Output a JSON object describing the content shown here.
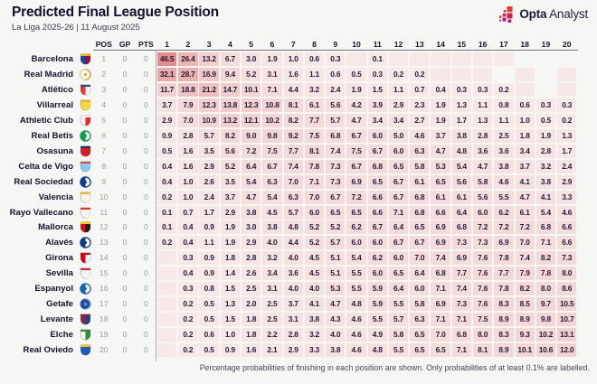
{
  "header": {
    "title": "Predicted Final League Position",
    "subtitle": "La Liga 2025-26 | 11 August 2025"
  },
  "logo": {
    "brand_bold": "Opta",
    "brand_light": "Analyst"
  },
  "table_columns": {
    "pos": "POS",
    "gp": "GP",
    "pts": "PTS"
  },
  "footer": {
    "note": "Percentage probabilities of finishing in each position are shown. Only probabilities of at least 0.1% are labelled."
  },
  "colors": {
    "background": "#f6f6f4",
    "text_dark": "#14132f",
    "text_gray": "#9b9ba2",
    "cell_text": "#2a2344",
    "cell_low": "#f8e9e9",
    "cell_high": "#e58b8b",
    "logo_red": "#e73c2e",
    "logo_crimson": "#c4244f",
    "logo_magenta": "#a21a68",
    "logo_purple": "#8c2f92"
  },
  "chart_data": {
    "type": "heatmap",
    "title": "Predicted Final League Position",
    "subtitle": "La Liga 2025-26 | 11 August 2025",
    "x_labels": [
      "1",
      "2",
      "3",
      "4",
      "5",
      "6",
      "7",
      "8",
      "9",
      "10",
      "11",
      "12",
      "13",
      "14",
      "15",
      "16",
      "17",
      "18",
      "19",
      "20"
    ],
    "note": "Percentage probabilities of finishing in each position are shown. Only probabilities of at least 0.1% are labelled.",
    "value_scale": {
      "min": 0,
      "max": 46.5
    },
    "teams": [
      {
        "name": "Barcelona",
        "pos": 1,
        "gp": 0,
        "pts": 0,
        "badge": {
          "shape": "shield",
          "c1": "#004d98",
          "c2": "#a50044",
          "c3": "#edbb00"
        },
        "probs": [
          46.5,
          26.4,
          13.2,
          6.7,
          3.0,
          1.9,
          1.0,
          0.6,
          0.3,
          0,
          0.1,
          0,
          0,
          0,
          0,
          0,
          0,
          null,
          null,
          null
        ]
      },
      {
        "name": "Real Madrid",
        "pos": 2,
        "gp": 0,
        "pts": 0,
        "badge": {
          "shape": "circle",
          "c1": "#f7f5ec",
          "c2": "#f7f5ec",
          "c3": "#c9a227"
        },
        "probs": [
          32.1,
          28.7,
          16.9,
          9.4,
          5.2,
          3.1,
          1.6,
          1.1,
          0.6,
          0.5,
          0.3,
          0.2,
          0.2,
          0,
          0,
          0,
          null,
          0,
          null,
          0
        ]
      },
      {
        "name": "Atlético",
        "pos": 3,
        "gp": 0,
        "pts": 0,
        "badge": {
          "shape": "shield",
          "c1": "#e23b30",
          "c2": "#f4f4f4",
          "c3": "#27498c"
        },
        "probs": [
          11.7,
          18.8,
          21.2,
          14.7,
          10.1,
          7.1,
          4.4,
          3.2,
          2.4,
          1.9,
          1.5,
          1.1,
          0.7,
          0.4,
          0.3,
          0.3,
          0.2,
          0,
          null,
          0
        ]
      },
      {
        "name": "Villarreal",
        "pos": 4,
        "gp": 0,
        "pts": 0,
        "badge": {
          "shape": "shield",
          "c1": "#f2d93c",
          "c2": "#f2d93c",
          "c3": "#e8b321"
        },
        "probs": [
          3.7,
          7.9,
          12.3,
          13.8,
          12.3,
          10.8,
          8.1,
          6.1,
          5.6,
          4.2,
          3.9,
          2.9,
          2.3,
          1.9,
          1.3,
          1.1,
          0.8,
          0.6,
          0.3,
          0.3
        ]
      },
      {
        "name": "Athletic Club",
        "pos": 5,
        "gp": 0,
        "pts": 0,
        "badge": {
          "shape": "shield",
          "c1": "#f4f4f4",
          "c2": "#ee2523",
          "c3": "#f4f4f4"
        },
        "probs": [
          2.9,
          7.0,
          10.9,
          13.2,
          12.1,
          10.2,
          8.2,
          7.7,
          5.7,
          4.7,
          3.4,
          3.4,
          2.7,
          1.9,
          1.7,
          1.3,
          1.1,
          1.0,
          0.5,
          0.2
        ]
      },
      {
        "name": "Real Betis",
        "pos": 6,
        "gp": 0,
        "pts": 0,
        "badge": {
          "shape": "circle",
          "c1": "#0b9e4e",
          "c2": "#f6f6f4",
          "c3": "#0b9e4e"
        },
        "probs": [
          0.9,
          2.8,
          5.7,
          8.2,
          9.0,
          9.8,
          9.2,
          7.5,
          6.8,
          6.7,
          6.0,
          5.0,
          4.6,
          3.7,
          3.8,
          2.8,
          2.5,
          1.8,
          1.9,
          1.3
        ]
      },
      {
        "name": "Osasuna",
        "pos": 7,
        "gp": 0,
        "pts": 0,
        "badge": {
          "shape": "shield",
          "c1": "#d91a21",
          "c2": "#d91a21",
          "c3": "#0a346f"
        },
        "probs": [
          0.5,
          1.6,
          3.5,
          5.6,
          7.2,
          7.5,
          7.7,
          8.1,
          7.4,
          7.5,
          6.7,
          6.0,
          6.3,
          4.7,
          4.8,
          3.6,
          3.6,
          3.4,
          2.8,
          1.7
        ]
      },
      {
        "name": "Celta de Vigo",
        "pos": 8,
        "gp": 0,
        "pts": 0,
        "badge": {
          "shape": "shield",
          "c1": "#8ec9f2",
          "c2": "#8ec9f2",
          "c3": "#d94a3a"
        },
        "probs": [
          0.4,
          1.6,
          2.9,
          5.2,
          6.4,
          6.7,
          7.4,
          7.8,
          7.3,
          6.7,
          6.8,
          6.5,
          5.8,
          5.3,
          5.4,
          4.7,
          3.8,
          3.7,
          3.2,
          2.4
        ]
      },
      {
        "name": "Real Sociedad",
        "pos": 9,
        "gp": 0,
        "pts": 0,
        "badge": {
          "shape": "circle",
          "c1": "#0b3d91",
          "c2": "#f4f4f4",
          "c3": "#0b3d91"
        },
        "probs": [
          0.4,
          1.0,
          2.6,
          3.5,
          5.4,
          6.3,
          7.0,
          7.1,
          7.3,
          6.9,
          6.5,
          6.7,
          6.1,
          6.5,
          5.6,
          5.8,
          4.6,
          4.1,
          3.8,
          2.9
        ]
      },
      {
        "name": "Valencia",
        "pos": 10,
        "gp": 0,
        "pts": 0,
        "badge": {
          "shape": "shield",
          "c1": "#f6f4ee",
          "c2": "#f6f4ee",
          "c3": "#f0b529"
        },
        "probs": [
          0.2,
          1.0,
          2.4,
          3.7,
          4.7,
          5.4,
          6.3,
          7.0,
          6.7,
          7.2,
          6.6,
          6.7,
          6.8,
          6.1,
          6.1,
          5.6,
          5.5,
          4.7,
          4.1,
          3.3
        ]
      },
      {
        "name": "Rayo Vallecano",
        "pos": 11,
        "gp": 0,
        "pts": 0,
        "badge": {
          "shape": "shield",
          "c1": "#f6f4ee",
          "c2": "#f6f4ee",
          "c3": "#e53027"
        },
        "probs": [
          0.1,
          0.7,
          1.7,
          2.9,
          3.8,
          4.5,
          5.7,
          6.0,
          6.5,
          6.5,
          6.6,
          7.1,
          6.8,
          6.6,
          6.4,
          6.0,
          6.2,
          6.1,
          5.4,
          4.6
        ]
      },
      {
        "name": "Mallorca",
        "pos": 12,
        "gp": 0,
        "pts": 0,
        "badge": {
          "shape": "shield",
          "c1": "#e20613",
          "c2": "#1a1a1a",
          "c3": "#ffd200"
        },
        "probs": [
          0.1,
          0.4,
          0.9,
          1.9,
          3.0,
          3.8,
          4.8,
          5.2,
          5.2,
          6.2,
          6.7,
          6.4,
          6.5,
          6.9,
          6.8,
          7.2,
          7.2,
          7.2,
          6.8,
          6.6
        ]
      },
      {
        "name": "Alavés",
        "pos": 13,
        "gp": 0,
        "pts": 0,
        "badge": {
          "shape": "circle",
          "c1": "#0a3c8c",
          "c2": "#f4f4f4",
          "c3": "#0a3c8c"
        },
        "probs": [
          0.2,
          0.4,
          1.1,
          1.9,
          2.9,
          4.0,
          4.4,
          5.2,
          5.7,
          6.0,
          6.0,
          6.7,
          6.7,
          6.9,
          7.3,
          7.3,
          6.9,
          7.0,
          7.1,
          6.6
        ]
      },
      {
        "name": "Girona",
        "pos": 14,
        "gp": 0,
        "pts": 0,
        "badge": {
          "shape": "shield",
          "c1": "#d0021b",
          "c2": "#f4f4f4",
          "c3": "#d0021b"
        },
        "probs": [
          0,
          0.3,
          0.9,
          1.8,
          2.8,
          3.2,
          4.0,
          4.5,
          5.1,
          5.4,
          6.2,
          6.0,
          7.0,
          7.4,
          6.9,
          7.6,
          7.8,
          7.4,
          8.2,
          7.3
        ]
      },
      {
        "name": "Sevilla",
        "pos": 15,
        "gp": 0,
        "pts": 0,
        "badge": {
          "shape": "shield",
          "c1": "#f4f4f4",
          "c2": "#f4f4f4",
          "c3": "#cf2434"
        },
        "probs": [
          0,
          0.4,
          0.9,
          1.4,
          2.6,
          3.4,
          3.6,
          4.5,
          5.1,
          5.5,
          6.0,
          6.5,
          6.4,
          6.8,
          7.7,
          7.6,
          7.7,
          7.9,
          7.8,
          8.0
        ]
      },
      {
        "name": "Espanyol",
        "pos": 16,
        "gp": 0,
        "pts": 0,
        "badge": {
          "shape": "circle",
          "c1": "#1862b4",
          "c2": "#f4f4f4",
          "c3": "#1862b4"
        },
        "probs": [
          0,
          0.3,
          0.8,
          1.5,
          2.5,
          3.1,
          4.0,
          4.0,
          5.3,
          5.5,
          5.9,
          6.4,
          6.0,
          7.1,
          7.4,
          7.6,
          7.8,
          8.2,
          8.0,
          8.6
        ]
      },
      {
        "name": "Getafe",
        "pos": 17,
        "gp": 0,
        "pts": 0,
        "badge": {
          "shape": "circle",
          "c1": "#1452a3",
          "c2": "#1452a3",
          "c3": "#8aa0cc"
        },
        "probs": [
          0,
          0.2,
          0.5,
          1.3,
          2.0,
          2.5,
          3.7,
          4.1,
          4.7,
          4.8,
          5.9,
          5.5,
          5.8,
          6.9,
          7.3,
          7.6,
          8.3,
          8.5,
          9.7,
          10.5
        ]
      },
      {
        "name": "Levante",
        "pos": 18,
        "gp": 0,
        "pts": 0,
        "badge": {
          "shape": "shield",
          "c1": "#8c2340",
          "c2": "#1c4488",
          "c3": "#8c2340"
        },
        "probs": [
          0,
          0.2,
          0.5,
          1.5,
          1.8,
          2.5,
          3.1,
          3.8,
          4.3,
          4.6,
          5.5,
          5.7,
          6.3,
          7.1,
          7.1,
          7.5,
          8.9,
          8.9,
          9.8,
          10.7
        ]
      },
      {
        "name": "Elche",
        "pos": 19,
        "gp": 0,
        "pts": 0,
        "badge": {
          "shape": "shield",
          "c1": "#f4f4f4",
          "c2": "#2e8b3a",
          "c3": "#2e8b3a"
        },
        "probs": [
          0,
          0.2,
          0.6,
          1.0,
          1.8,
          2.2,
          2.8,
          3.2,
          4.0,
          4.6,
          4.9,
          5.8,
          6.5,
          7.0,
          6.8,
          8.0,
          8.3,
          9.3,
          10.2,
          13.1
        ]
      },
      {
        "name": "Real Oviedo",
        "pos": 20,
        "gp": 0,
        "pts": 0,
        "badge": {
          "shape": "shield",
          "c1": "#1d5bb8",
          "c2": "#1d5bb8",
          "c3": "#f3c917"
        },
        "probs": [
          0,
          0.2,
          0.5,
          0.9,
          1.6,
          2.1,
          2.9,
          3.3,
          3.8,
          4.6,
          4.8,
          5.5,
          6.5,
          6.5,
          7.1,
          8.1,
          8.9,
          10.1,
          10.6,
          12.0
        ]
      }
    ]
  }
}
